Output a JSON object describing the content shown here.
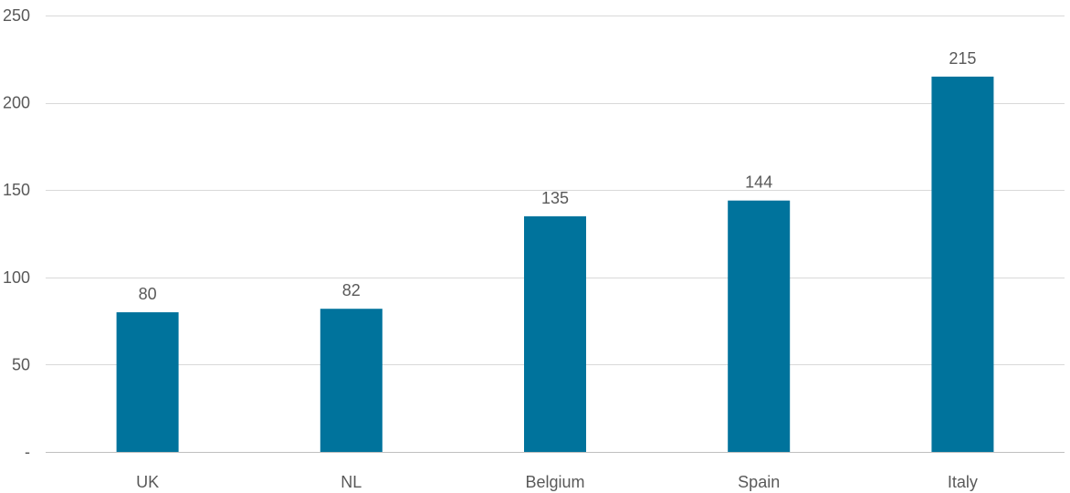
{
  "chart_data": {
    "type": "bar",
    "categories": [
      "UK",
      "NL",
      "Belgium",
      "Spain",
      "Italy"
    ],
    "values": [
      80,
      82,
      135,
      144,
      215
    ],
    "data_labels": [
      "80",
      "82",
      "135",
      "144",
      "215"
    ],
    "y_tick_labels": [
      "-",
      "50",
      "100",
      "150",
      "200",
      "250"
    ],
    "y_ticks": [
      0,
      50,
      100,
      150,
      200,
      250
    ],
    "ylim": [
      0,
      250
    ],
    "title": "",
    "xlabel": "",
    "ylabel": "",
    "grid": true,
    "legend": "none",
    "bar_color": "#00739c"
  }
}
